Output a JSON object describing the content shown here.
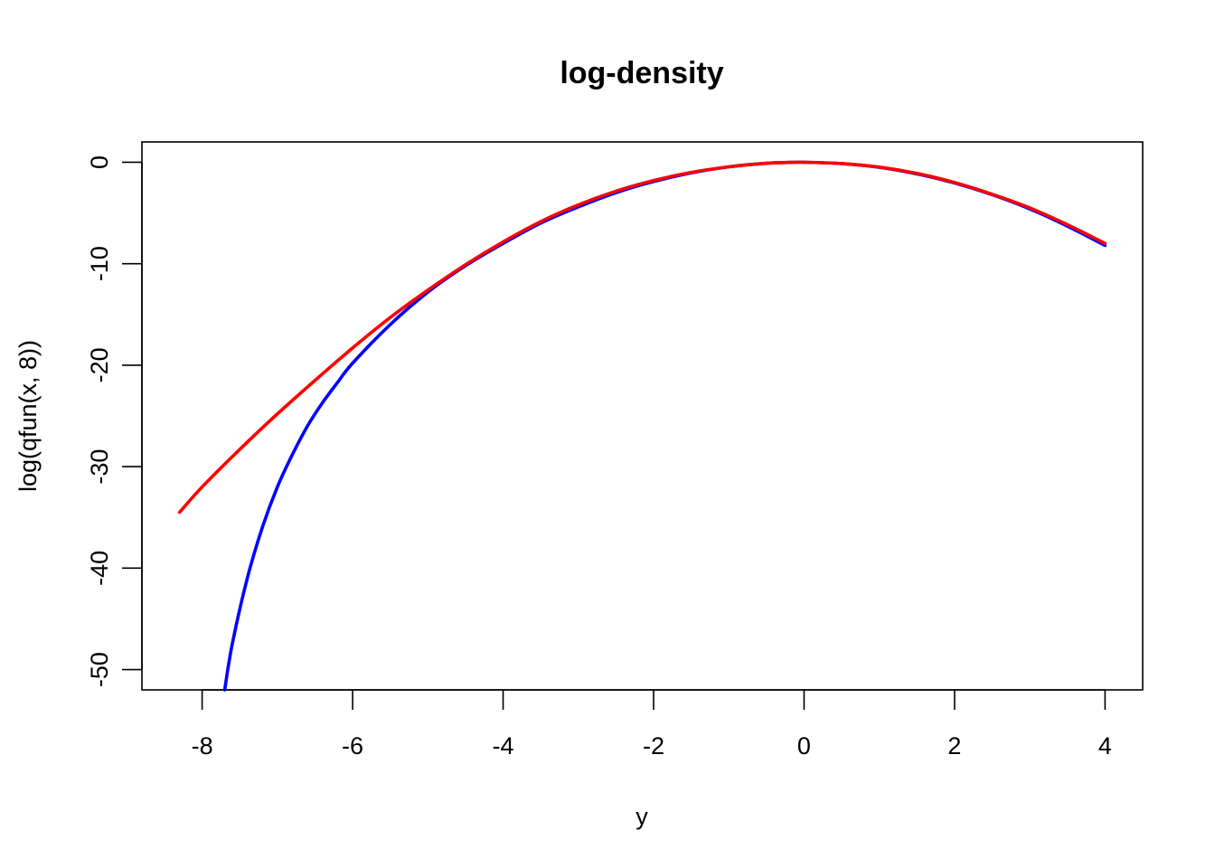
{
  "chart_data": {
    "type": "line",
    "title": "log-density",
    "xlabel": "y",
    "ylabel": "log(qfun(x, 8))",
    "xlim": [
      -8.8,
      4.5
    ],
    "ylim": [
      -52,
      2
    ],
    "x_ticks": [
      -8,
      -6,
      -4,
      -2,
      0,
      2,
      4
    ],
    "x_tick_labels": [
      "-8",
      "-6",
      "-4",
      "-2",
      "0",
      "2",
      "4"
    ],
    "y_ticks": [
      0,
      -10,
      -20,
      -30,
      -40,
      -50
    ],
    "y_tick_labels": [
      "0",
      "-10",
      "-20",
      "-30",
      "-40",
      "-50"
    ],
    "grid": false,
    "legend": "none",
    "series": [
      {
        "color": "#0000ff",
        "x": [
          -7.7,
          -7.6,
          -7.4,
          -7.2,
          -7.0,
          -6.8,
          -6.6,
          -6.4,
          -6.2,
          -6.0,
          -5.5,
          -5.0,
          -4.5,
          -4.0,
          -3.5,
          -3.0,
          -2.5,
          -2.0,
          -1.5,
          -1.0,
          -0.5,
          -0.1,
          0.0,
          0.5,
          1.0,
          1.5,
          2.0,
          2.5,
          3.0,
          3.5,
          4.0
        ],
        "y": [
          -52.0,
          -47.5,
          -41.0,
          -36.0,
          -32.0,
          -28.8,
          -26.0,
          -23.7,
          -21.7,
          -19.8,
          -16.0,
          -12.8,
          -10.2,
          -8.0,
          -6.0,
          -4.4,
          -3.0,
          -1.9,
          -1.05,
          -0.45,
          -0.1,
          0.0,
          0.0,
          -0.13,
          -0.5,
          -1.15,
          -2.05,
          -3.2,
          -4.6,
          -6.3,
          -8.2
        ]
      },
      {
        "color": "#ff0000",
        "x": [
          -8.3,
          -8.0,
          -7.5,
          -7.0,
          -6.5,
          -6.0,
          -5.5,
          -5.0,
          -4.5,
          -4.0,
          -3.5,
          -3.0,
          -2.5,
          -2.0,
          -1.5,
          -1.0,
          -0.5,
          -0.1,
          0.0,
          0.5,
          1.0,
          1.5,
          2.0,
          2.5,
          3.0,
          3.5,
          4.0
        ],
        "y": [
          -34.5,
          -32.0,
          -28.3,
          -24.8,
          -21.5,
          -18.3,
          -15.3,
          -12.6,
          -10.1,
          -7.85,
          -5.85,
          -4.2,
          -2.85,
          -1.8,
          -1.0,
          -0.45,
          -0.1,
          0.0,
          0.0,
          -0.13,
          -0.48,
          -1.1,
          -2.0,
          -3.15,
          -4.5,
          -6.15,
          -8.0
        ]
      }
    ]
  }
}
